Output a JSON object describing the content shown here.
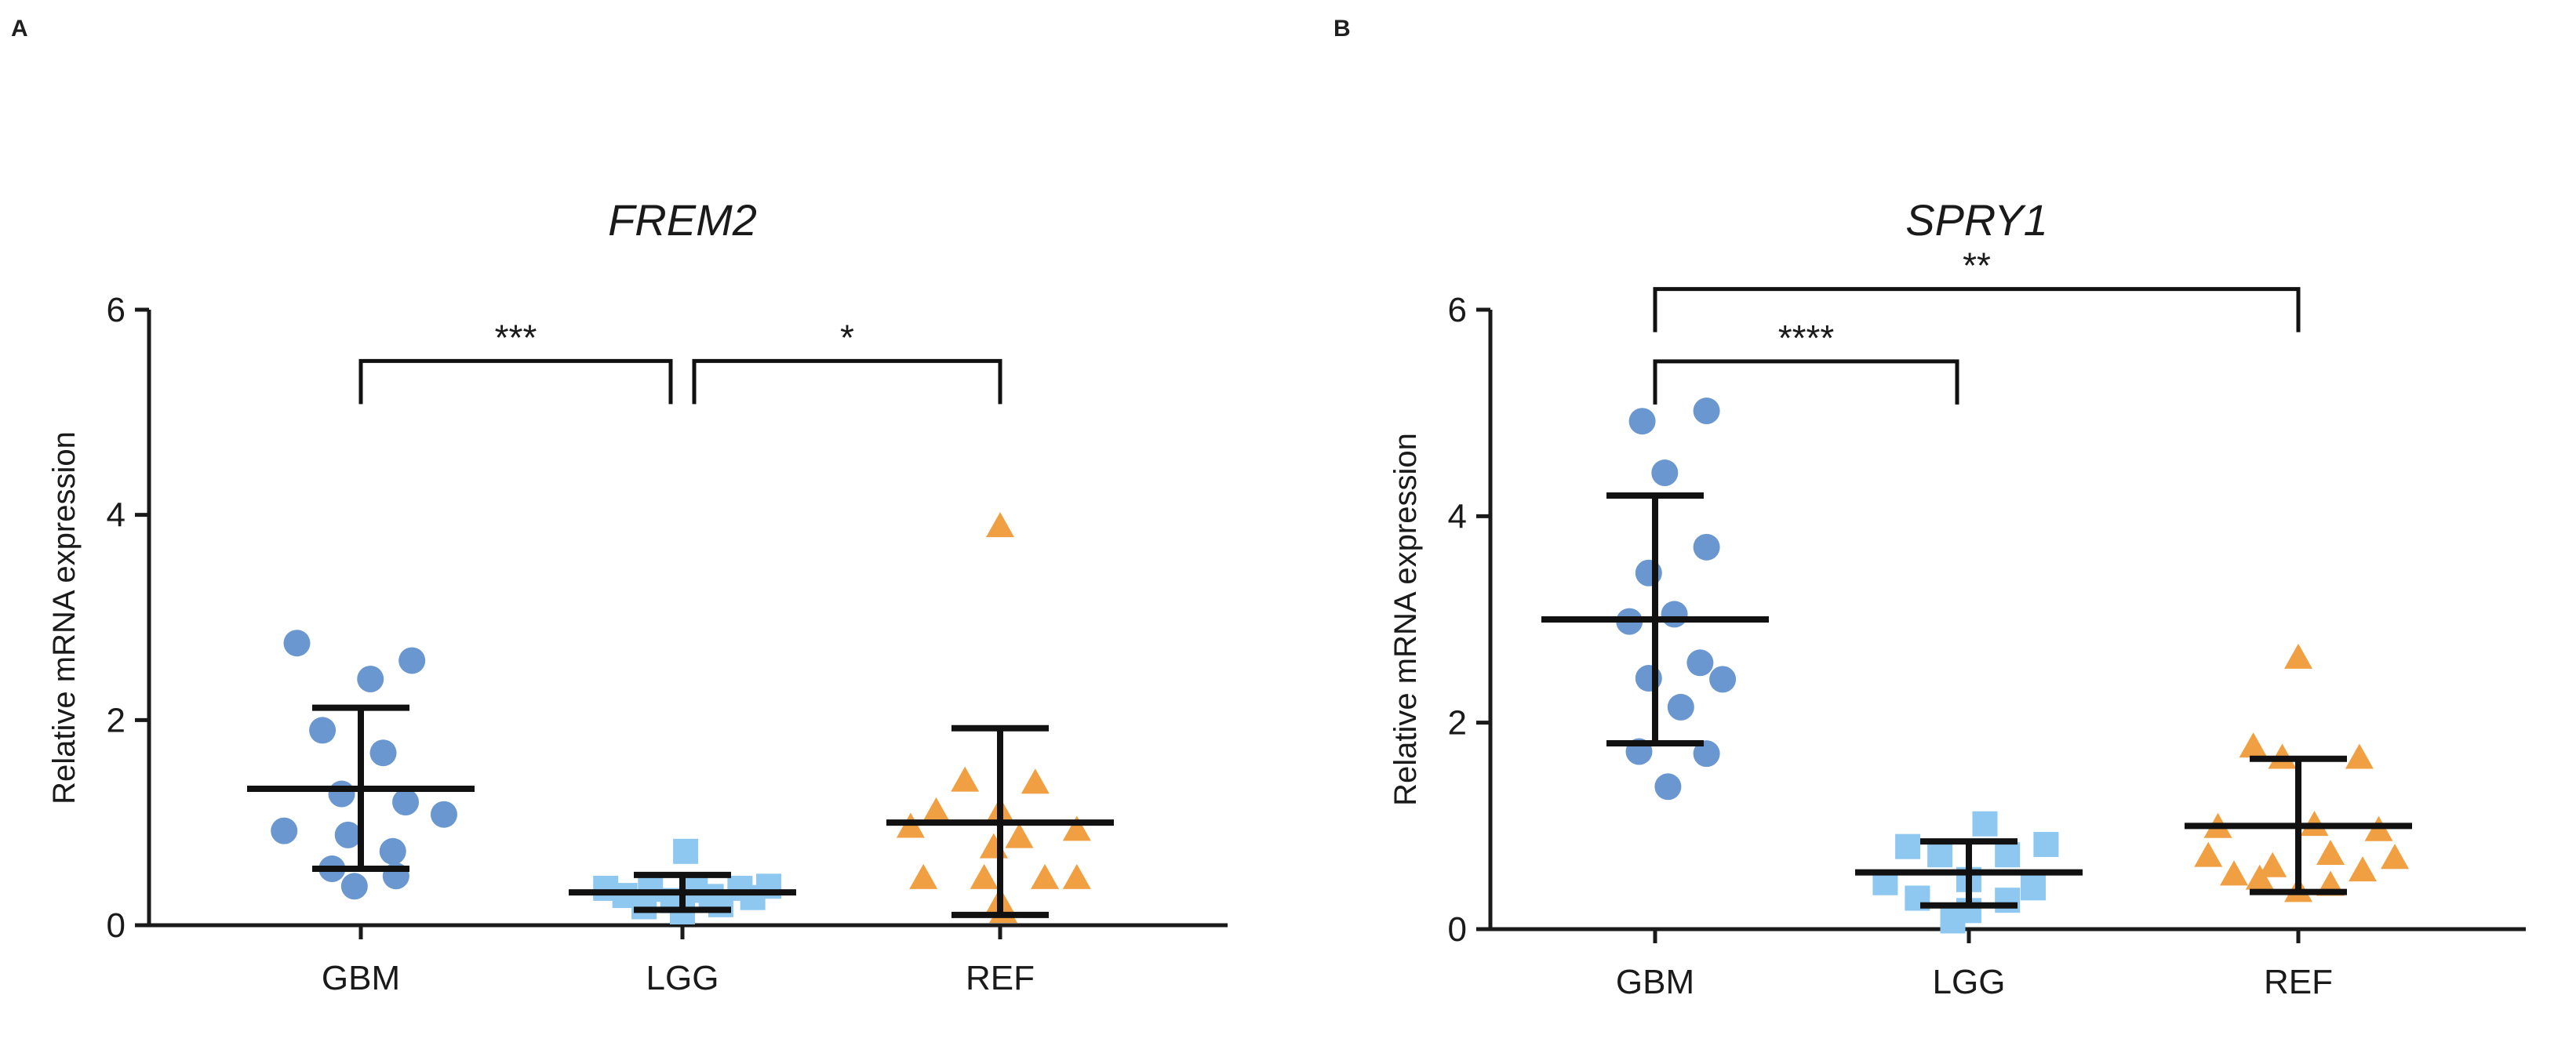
{
  "panels": [
    {
      "letter": "A"
    },
    {
      "letter": "B"
    }
  ],
  "colors": {
    "GBM": "#6a97cf",
    "LGG": "#8ec8f0",
    "REF": "#f0a043",
    "axis": "#1a1a1a"
  },
  "chart_data": [
    {
      "type": "scatter",
      "title": "FREM2",
      "xlabel": "",
      "ylabel": "Relative mRNA expression",
      "ylim": [
        0,
        6
      ],
      "yticks": [
        "0",
        "2",
        "4",
        "6"
      ],
      "categories": [
        "GBM",
        "LGG",
        "REF"
      ],
      "series": [
        {
          "name": "GBM",
          "marker": "circle",
          "points": [
            [
              -0.2,
              2.75
            ],
            [
              0.03,
              2.4
            ],
            [
              0.16,
              2.58
            ],
            [
              -0.12,
              1.9
            ],
            [
              0.07,
              1.68
            ],
            [
              -0.06,
              1.28
            ],
            [
              0.14,
              1.2
            ],
            [
              -0.24,
              0.92
            ],
            [
              -0.04,
              0.88
            ],
            [
              0.26,
              1.08
            ],
            [
              0.1,
              0.72
            ],
            [
              -0.09,
              0.55
            ],
            [
              0.11,
              0.48
            ],
            [
              -0.02,
              0.38
            ]
          ],
          "mean": 1.33,
          "err_low": 0.55,
          "err_high": 2.12
        },
        {
          "name": "LGG",
          "marker": "square",
          "points": [
            [
              0.01,
              0.72
            ],
            [
              -0.24,
              0.36
            ],
            [
              -0.1,
              0.35
            ],
            [
              0.04,
              0.34
            ],
            [
              0.18,
              0.36
            ],
            [
              0.27,
              0.38
            ],
            [
              -0.18,
              0.29
            ],
            [
              0.09,
              0.28
            ],
            [
              0.22,
              0.27
            ],
            [
              -0.03,
              0.24
            ],
            [
              -0.12,
              0.18
            ],
            [
              0.12,
              0.2
            ],
            [
              0.0,
              0.13
            ]
          ],
          "mean": 0.32,
          "err_low": 0.15,
          "err_high": 0.49
        },
        {
          "name": "REF",
          "marker": "triangle",
          "points": [
            [
              0.0,
              3.88
            ],
            [
              -0.11,
              1.4
            ],
            [
              0.11,
              1.38
            ],
            [
              -0.2,
              1.1
            ],
            [
              0.0,
              1.1
            ],
            [
              0.24,
              0.92
            ],
            [
              -0.28,
              0.95
            ],
            [
              0.06,
              0.85
            ],
            [
              -0.02,
              0.75
            ],
            [
              -0.24,
              0.45
            ],
            [
              -0.05,
              0.45
            ],
            [
              0.14,
              0.45
            ],
            [
              0.24,
              0.45
            ],
            [
              0.0,
              0.22
            ],
            [
              0.01,
              0.12
            ]
          ],
          "mean": 1.0,
          "err_low": 0.1,
          "err_high": 1.92
        }
      ],
      "significance": [
        {
          "from": 0,
          "to": 1,
          "y": 5.5,
          "label": "***"
        },
        {
          "from": 1,
          "to": 2,
          "y": 5.5,
          "label": "*"
        }
      ]
    },
    {
      "type": "scatter",
      "title": "SPRY1",
      "xlabel": "",
      "ylabel": "Relative mRNA expression",
      "ylim": [
        0,
        6
      ],
      "yticks": [
        "0",
        "2",
        "4",
        "6"
      ],
      "categories": [
        "GBM",
        "LGG",
        "REF"
      ],
      "series": [
        {
          "name": "GBM",
          "marker": "circle",
          "points": [
            [
              0.16,
              5.02
            ],
            [
              -0.04,
              4.92
            ],
            [
              0.03,
              4.42
            ],
            [
              -0.02,
              3.45
            ],
            [
              0.16,
              3.7
            ],
            [
              -0.08,
              2.98
            ],
            [
              0.06,
              3.05
            ],
            [
              0.21,
              2.42
            ],
            [
              0.14,
              2.58
            ],
            [
              -0.02,
              2.43
            ],
            [
              0.08,
              2.15
            ],
            [
              -0.05,
              1.72
            ],
            [
              0.16,
              1.7
            ],
            [
              0.04,
              1.38
            ]
          ],
          "mean": 3.0,
          "err_low": 1.8,
          "err_high": 4.2
        },
        {
          "name": "LGG",
          "marker": "square",
          "points": [
            [
              0.05,
              1.02
            ],
            [
              -0.19,
              0.8
            ],
            [
              0.24,
              0.82
            ],
            [
              -0.09,
              0.72
            ],
            [
              0.12,
              0.72
            ],
            [
              -0.26,
              0.45
            ],
            [
              0.0,
              0.48
            ],
            [
              0.2,
              0.4
            ],
            [
              -0.16,
              0.3
            ],
            [
              0.12,
              0.28
            ],
            [
              0.0,
              0.18
            ],
            [
              -0.05,
              0.08
            ]
          ],
          "mean": 0.55,
          "err_low": 0.23,
          "err_high": 0.85
        },
        {
          "name": "REF",
          "marker": "triangle",
          "points": [
            [
              0.0,
              2.62
            ],
            [
              -0.05,
              1.65
            ],
            [
              0.19,
              1.65
            ],
            [
              -0.14,
              1.76
            ],
            [
              -0.25,
              0.98
            ],
            [
              0.05,
              1.0
            ],
            [
              0.25,
              0.95
            ],
            [
              -0.28,
              0.7
            ],
            [
              0.1,
              0.72
            ],
            [
              0.3,
              0.68
            ],
            [
              -0.08,
              0.6
            ],
            [
              0.2,
              0.56
            ],
            [
              -0.2,
              0.52
            ],
            [
              -0.12,
              0.48
            ],
            [
              0.1,
              0.42
            ],
            [
              0.0,
              0.36
            ]
          ],
          "mean": 1.0,
          "err_low": 0.36,
          "err_high": 1.65
        }
      ],
      "significance": [
        {
          "from": 0,
          "to": 1,
          "y": 5.5,
          "label": "****"
        },
        {
          "from": 0,
          "to": 2,
          "y": 6.2,
          "label": "**"
        }
      ]
    }
  ]
}
